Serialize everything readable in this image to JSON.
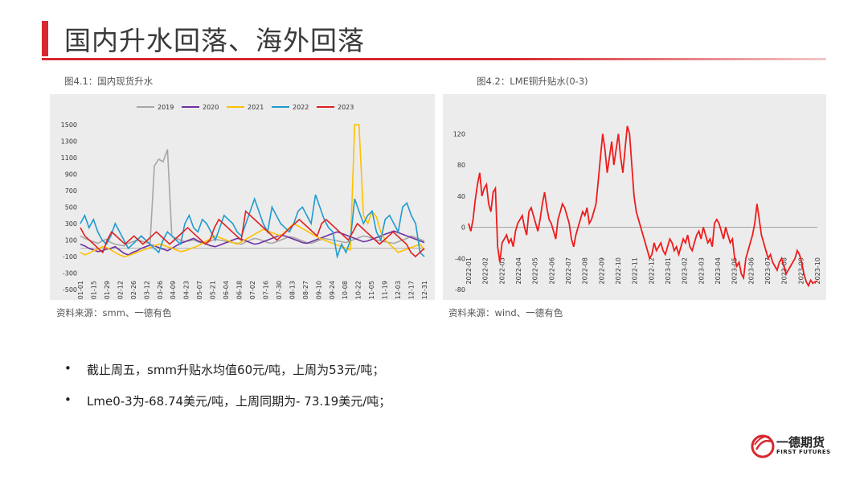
{
  "page": {
    "title": "国内升水回落、海外回落",
    "accent": "#d7282f"
  },
  "fig1": {
    "caption": "图4.1：国内现货升水",
    "source": "资料来源：smm、一德有色"
  },
  "fig2": {
    "caption": "图4.2：LME铜升贴水(0-3)",
    "source": "资料来源：wind、一德有色"
  },
  "bullets": [
    "截止周五，smm升贴水均值60元/吨，上周为53元/吨；",
    "Lme0-3为-68.74美元/吨，上周同期为-  73.19美元/吨；"
  ],
  "logo": {
    "name": "一德期货",
    "sub": "FIRST FUTURES"
  },
  "chart_data": [
    {
      "type": "line",
      "ylim": [
        -500,
        1500
      ],
      "yticks": [
        -500,
        -300,
        -100,
        100,
        300,
        500,
        700,
        900,
        1100,
        1300,
        1500
      ],
      "xticks": [
        "01-01",
        "01-15",
        "01-29",
        "02-12",
        "02-26",
        "03-12",
        "03-26",
        "04-09",
        "04-23",
        "05-07",
        "05-21",
        "06-04",
        "06-18",
        "07-02",
        "07-16",
        "07-30",
        "08-13",
        "08-27",
        "09-10",
        "09-24",
        "10-08",
        "10-22",
        "11-05",
        "11-19",
        "12-03",
        "12-17",
        "12-31"
      ],
      "legend_position": "top",
      "series": [
        {
          "name": "2019",
          "color": "#a6a6a6",
          "values": [
            150,
            120,
            100,
            80,
            60,
            90,
            110,
            70,
            50,
            40,
            30,
            60,
            80,
            100,
            90,
            70,
            60,
            1000,
            1080,
            1050,
            1200,
            150,
            120,
            100,
            80,
            90,
            100,
            80,
            60,
            70,
            90,
            110,
            100,
            90,
            80,
            70,
            60,
            50,
            80,
            100,
            120,
            110,
            90,
            70,
            60,
            80,
            100,
            120,
            140,
            130,
            110,
            90,
            70,
            60,
            80,
            100,
            120,
            110,
            100,
            90,
            80,
            70,
            90,
            110,
            130,
            150,
            140,
            120,
            100,
            90,
            80,
            70,
            60,
            80,
            100,
            120,
            150,
            130,
            110,
            90
          ]
        },
        {
          "name": "2020",
          "color": "#7030a0",
          "values": [
            50,
            30,
            0,
            -20,
            -40,
            -30,
            -10,
            0,
            20,
            -20,
            -60,
            -80,
            -50,
            -30,
            0,
            20,
            40,
            30,
            10,
            -10,
            -30,
            0,
            30,
            60,
            80,
            100,
            120,
            90,
            70,
            50,
            30,
            20,
            40,
            60,
            80,
            100,
            120,
            110,
            90,
            70,
            50,
            60,
            80,
            100,
            120,
            140,
            160,
            150,
            130,
            110,
            90,
            70,
            60,
            80,
            100,
            120,
            140,
            160,
            180,
            200,
            180,
            160,
            140,
            120,
            100,
            80,
            90,
            110,
            130,
            150,
            170,
            190,
            210,
            190,
            170,
            150,
            130,
            110,
            90,
            70
          ]
        },
        {
          "name": "2021",
          "color": "#ffc000",
          "values": [
            -50,
            -80,
            -60,
            -30,
            -10,
            20,
            10,
            -20,
            -50,
            -80,
            -100,
            -90,
            -70,
            -50,
            -30,
            -10,
            10,
            30,
            50,
            40,
            20,
            0,
            -20,
            -40,
            -30,
            -10,
            10,
            30,
            60,
            90,
            120,
            150,
            130,
            110,
            90,
            70,
            50,
            80,
            110,
            140,
            170,
            200,
            230,
            210,
            190,
            170,
            150,
            200,
            250,
            300,
            270,
            240,
            210,
            180,
            150,
            120,
            100,
            80,
            60,
            40,
            20,
            0,
            -20,
            1500,
            1500,
            400,
            300,
            450,
            380,
            200,
            100,
            50,
            0,
            -50,
            -30,
            -10,
            10,
            30,
            50,
            -20
          ]
        },
        {
          "name": "2022",
          "color": "#1f9bcf",
          "values": [
            300,
            400,
            250,
            350,
            200,
            100,
            50,
            150,
            300,
            200,
            100,
            0,
            50,
            100,
            150,
            100,
            50,
            0,
            -50,
            100,
            200,
            150,
            100,
            50,
            300,
            400,
            250,
            200,
            350,
            300,
            200,
            100,
            250,
            400,
            350,
            300,
            200,
            150,
            300,
            450,
            600,
            450,
            300,
            200,
            500,
            400,
            300,
            250,
            200,
            300,
            450,
            500,
            400,
            300,
            650,
            500,
            350,
            250,
            200,
            -100,
            50,
            -50,
            100,
            600,
            450,
            300,
            400,
            450,
            200,
            100,
            350,
            400,
            300,
            200,
            500,
            550,
            400,
            300,
            -50,
            -100
          ]
        },
        {
          "name": "2023",
          "color": "#e02020",
          "values": [
            250,
            150,
            100,
            50,
            0,
            -50,
            100,
            200,
            150,
            100,
            50,
            100,
            150,
            100,
            50,
            100,
            150,
            200,
            150,
            100,
            50,
            100,
            150,
            200,
            250,
            200,
            150,
            100,
            50,
            100,
            250,
            350,
            300,
            250,
            200,
            150,
            100,
            450,
            400,
            350,
            300,
            250,
            200,
            150,
            100,
            150,
            200,
            250,
            300,
            350,
            300,
            250,
            200,
            150,
            300,
            350,
            300,
            250,
            200,
            150,
            100,
            200,
            300,
            250,
            200,
            150,
            100,
            50,
            100,
            150,
            200,
            150,
            100,
            50,
            -50,
            -100,
            -50,
            0
          ]
        }
      ]
    },
    {
      "type": "line",
      "ylim": [
        -80,
        140
      ],
      "yticks": [
        -80,
        -40,
        0,
        40,
        80,
        120
      ],
      "xticks": [
        "2022-01",
        "2022-02",
        "2022-03",
        "2022-04",
        "2022-05",
        "2022-06",
        "2022-07",
        "2022-08",
        "2022-09",
        "2022-10",
        "2022-11",
        "2022-12",
        "2023-01",
        "2023-02",
        "2023-03",
        "2023-04",
        "2023-05",
        "2023-06",
        "2023-07",
        "2023-08",
        "2023-09",
        "2023-10"
      ],
      "series": [
        {
          "name": "",
          "color": "#ee1c1c",
          "values": [
            5,
            -5,
            10,
            35,
            55,
            70,
            40,
            50,
            55,
            30,
            20,
            45,
            50,
            -25,
            -45,
            -20,
            -15,
            -10,
            -20,
            -15,
            -25,
            -5,
            5,
            10,
            15,
            0,
            -10,
            20,
            25,
            15,
            5,
            -5,
            10,
            30,
            45,
            25,
            10,
            5,
            -5,
            -15,
            10,
            20,
            30,
            25,
            15,
            5,
            -15,
            -25,
            -10,
            0,
            10,
            20,
            15,
            25,
            5,
            10,
            20,
            30,
            60,
            90,
            120,
            100,
            70,
            90,
            110,
            80,
            100,
            120,
            90,
            70,
            100,
            130,
            120,
            80,
            40,
            20,
            10,
            0,
            -10,
            -20,
            -30,
            -40,
            -35,
            -20,
            -30,
            -25,
            -20,
            -30,
            -35,
            -25,
            -15,
            -20,
            -30,
            -25,
            -35,
            -25,
            -15,
            -20,
            -10,
            -25,
            -30,
            -20,
            -10,
            -5,
            -15,
            0,
            -10,
            -20,
            -15,
            -25,
            5,
            10,
            5,
            -5,
            -15,
            0,
            -10,
            -20,
            -15,
            -40,
            -50,
            -45,
            -60,
            -65,
            -40,
            -30,
            -20,
            -10,
            5,
            30,
            10,
            -10,
            -20,
            -30,
            -40,
            -35,
            -45,
            -50,
            -55,
            -45,
            -40,
            -50,
            -60,
            -55,
            -50,
            -45,
            -40,
            -30,
            -35,
            -45,
            -60,
            -70,
            -75,
            -68,
            -72,
            -70,
            -69
          ]
        }
      ]
    }
  ]
}
